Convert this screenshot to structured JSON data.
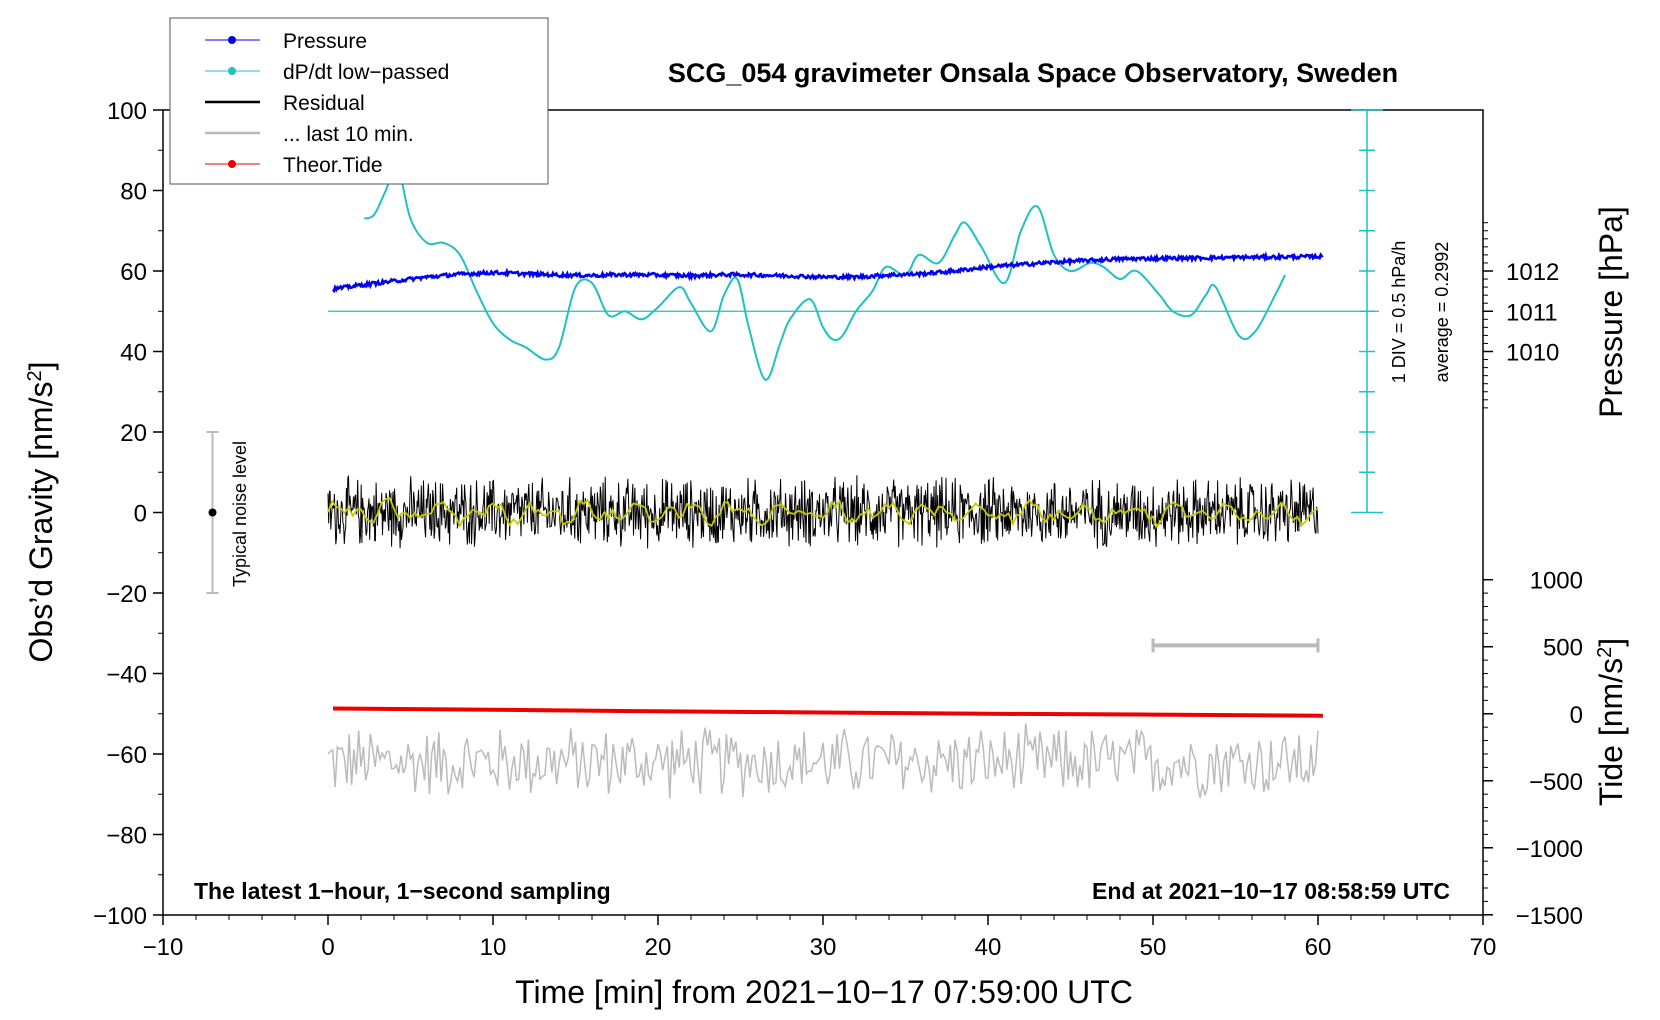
{
  "chart_data": {
    "type": "line",
    "title": "SCG_054 gravimeter Onsala Space Observatory, Sweden",
    "xlabel": "Time [min] from 2021−10−17 07:59:00 UTC",
    "ylabel_left": "Obs’d Gravity [nm/s²]",
    "ylabel_left_main": "Obs’d Gravity [nm/s",
    "ylabel_left_sup": "2",
    "ylabel_left_end": "]",
    "ylabel_right_top": "Pressure [hPa]",
    "ylabel_right_bottom": "Tide [nm/s²]",
    "ylabel_right_bottom_main": "Tide [nm/s",
    "ylabel_right_bottom_sup": "2",
    "ylabel_right_bottom_end": "]",
    "xlim": [
      -10,
      70
    ],
    "ylim": [
      -100,
      100
    ],
    "x_ticks": [
      -10,
      0,
      10,
      20,
      30,
      40,
      50,
      60,
      70
    ],
    "x_tick_labels": [
      "−10",
      "0",
      "10",
      "20",
      "30",
      "40",
      "50",
      "60",
      "70"
    ],
    "y_ticks": [
      -100,
      -80,
      -60,
      -40,
      -20,
      0,
      20,
      40,
      60,
      80,
      100
    ],
    "y_tick_labels": [
      "−100",
      "−80",
      "−60",
      "−40",
      "−20",
      "0",
      "20",
      "40",
      "60",
      "80",
      "100"
    ],
    "pressure_axis": {
      "ticks": [
        1010,
        1011,
        1012
      ],
      "tick_labels": [
        "1010",
        "1011",
        "1012"
      ],
      "gravity_equivalent": [
        40,
        50,
        60
      ]
    },
    "tide_axis": {
      "ticks": [
        1000,
        500,
        0,
        -500,
        -1000,
        -1500
      ],
      "tick_labels": [
        "1000",
        "500",
        "0",
        "−500",
        "−1000",
        "−1500"
      ]
    },
    "legend": [
      {
        "label": "Pressure",
        "color": "#0000ee"
      },
      {
        "label": "dP/dt low−passed",
        "color": "#1fc1c1"
      },
      {
        "label": "Residual",
        "color": "#000000"
      },
      {
        "label": "... last 10 min.",
        "color": "#bbbbbb"
      },
      {
        "label": "Theor.Tide",
        "color": "#ee0000"
      }
    ],
    "annotations": {
      "noise_label": "Typical noise level",
      "div_label": "1 DIV = 0.5 hPa/h",
      "average_label": "average = 0.2992",
      "bottom_left": "The latest 1−hour, 1−second sampling",
      "bottom_right": "End at 2021−10−17 08:58:59 UTC"
    },
    "noise_bar": {
      "x": -7,
      "y_low": -20,
      "y_high": 20,
      "center": 0
    },
    "last10_bar": {
      "x_start": 50,
      "x_end": 60,
      "y": -33
    },
    "dpdt_baseline": 50,
    "series": [
      {
        "name": "Pressure",
        "color": "#0000ee",
        "x": [
          0.3,
          2,
          4,
          6,
          8,
          10,
          12,
          14,
          16,
          18,
          20,
          22,
          24,
          26,
          28,
          30,
          32,
          34,
          36,
          38,
          40,
          42,
          44,
          46,
          48,
          50,
          52,
          54,
          56,
          58,
          60.3
        ],
        "y": [
          55.5,
          56.5,
          57.5,
          58.5,
          59.2,
          59.6,
          59.3,
          59.0,
          58.9,
          59.1,
          59.0,
          58.8,
          59.1,
          59.0,
          58.8,
          58.5,
          58.5,
          59.0,
          59.3,
          60.0,
          61.0,
          61.6,
          62.2,
          62.6,
          63.0,
          63.1,
          63.2,
          63.3,
          63.4,
          63.5,
          63.6
        ]
      },
      {
        "name": "dP/dt low−passed",
        "color": "#1fc1c1",
        "x": [
          2.2,
          2.8,
          3.5,
          4.2,
          5.0,
          6.0,
          7.0,
          8.0,
          9.0,
          10.0,
          11.0,
          12.0,
          13.2,
          14.0,
          15.0,
          16.0,
          17.0,
          18.0,
          19.0,
          20.0,
          21.3,
          22.0,
          23.2,
          24.0,
          24.8,
          25.5,
          26.5,
          27.4,
          28.0,
          29.2,
          30.0,
          30.6,
          31.2,
          32.0,
          33.0,
          33.8,
          35.0,
          35.8,
          37.0,
          38.0,
          38.6,
          39.6,
          41.0,
          42.0,
          43.0,
          44.0,
          45.0,
          46.2,
          47.0,
          48.0,
          49.0,
          50.4,
          51.2,
          52.3,
          53.2,
          53.8,
          55.2,
          56.2,
          57.4,
          58.0
        ],
        "y": [
          73,
          74,
          80,
          86,
          73,
          67,
          67,
          64,
          55,
          47,
          43,
          41,
          38,
          41,
          56,
          57,
          49,
          50,
          48,
          51,
          56,
          52,
          45,
          54,
          58,
          46,
          33,
          42,
          48,
          53,
          46,
          43,
          44,
          50,
          55,
          61,
          59,
          64,
          62,
          69,
          72,
          66,
          57,
          70,
          76,
          64,
          60,
          62,
          61,
          58,
          60,
          54,
          50,
          49,
          54,
          56,
          44,
          45,
          54,
          59
        ]
      },
      {
        "name": "Residual",
        "color": "#000000",
        "x": [
          0.0,
          60.0
        ],
        "y": [
          0.0,
          0.0
        ],
        "noise_amplitude": 10
      },
      {
        "name": "Residual low−passed",
        "color": "#c8c800",
        "x": [
          0.0,
          60.0
        ],
        "y": [
          0.0,
          0.0
        ]
      },
      {
        "name": "Theor.Tide",
        "color": "#ee0000",
        "x": [
          0.3,
          10,
          20,
          30,
          40,
          50,
          60.3
        ],
        "y": [
          -48.7,
          -49.0,
          -49.4,
          -49.7,
          -50.0,
          -50.2,
          -50.5
        ]
      },
      {
        "name": "... last 10 min.",
        "color": "#bbbbbb",
        "x": [
          0.0,
          60.0
        ],
        "y": [
          -62,
          -62
        ],
        "noise_amplitude": 10
      }
    ]
  }
}
